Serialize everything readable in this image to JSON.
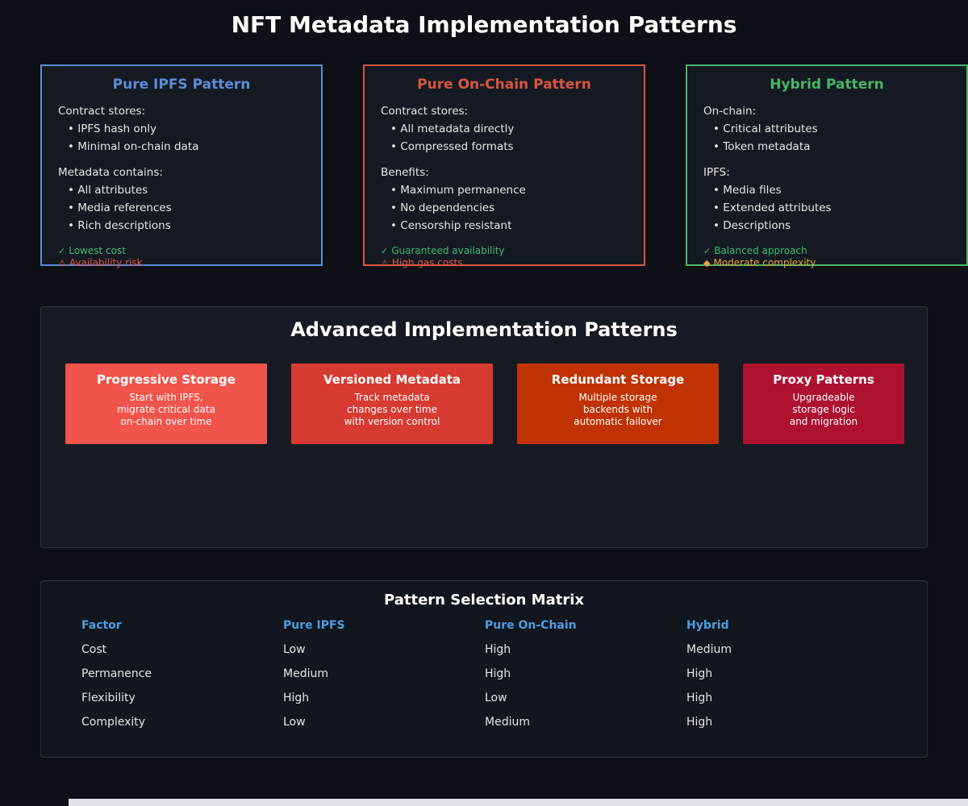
{
  "page": {
    "title": "NFT Metadata Implementation Patterns"
  },
  "colors": {
    "green": "#3dba6f",
    "red": "#e25549",
    "orange": "#e8a33c",
    "header_blue": "#4d9de0"
  },
  "cards": [
    {
      "title": "Pure IPFS Pattern",
      "accent": "#5b8dd9",
      "sections": [
        {
          "heading": "Contract stores:",
          "items": [
            "IPFS hash only",
            "Minimal on-chain data"
          ]
        },
        {
          "heading": "Metadata contains:",
          "items": [
            "All attributes",
            "Media references",
            "Rich descriptions"
          ]
        }
      ],
      "footer": [
        {
          "icon": "✓",
          "text": "Lowest cost",
          "color": "#3dba6f"
        },
        {
          "icon": "⚠",
          "text": "Availability risk",
          "color": "#e25549"
        }
      ]
    },
    {
      "title": "Pure On-Chain Pattern",
      "accent": "#d95540",
      "sections": [
        {
          "heading": "Contract stores:",
          "items": [
            "All metadata directly",
            "Compressed formats"
          ]
        },
        {
          "heading": "Benefits:",
          "items": [
            "Maximum permanence",
            "No dependencies",
            "Censorship resistant"
          ]
        }
      ],
      "footer": [
        {
          "icon": "✓",
          "text": "Guaranteed availability",
          "color": "#3dba6f"
        },
        {
          "icon": "⚠",
          "text": "High gas costs",
          "color": "#e25549"
        }
      ]
    },
    {
      "title": "Hybrid Pattern",
      "accent": "#46b768",
      "sections": [
        {
          "heading": "On-chain:",
          "items": [
            "Critical attributes",
            "Token metadata"
          ]
        },
        {
          "heading": "IPFS:",
          "items": [
            "Media files",
            "Extended attributes",
            "Descriptions"
          ]
        }
      ],
      "footer": [
        {
          "icon": "✓",
          "text": "Balanced approach",
          "color": "#3dba6f"
        },
        {
          "icon": "◆",
          "text": "Moderate complexity",
          "color": "#e8a33c"
        }
      ]
    }
  ],
  "advanced": {
    "title": "Advanced Implementation Patterns",
    "cards": [
      {
        "title": "Progressive Storage",
        "bg": "#f0544a",
        "lines": [
          "Start with IPFS,",
          "migrate critical data",
          "on-chain over time"
        ]
      },
      {
        "title": "Versioned Metadata",
        "bg": "#d63a31",
        "lines": [
          "Track metadata",
          "changes over time",
          "with version control"
        ]
      },
      {
        "title": "Redundant Storage",
        "bg": "#c03204",
        "lines": [
          "Multiple storage",
          "backends with",
          "automatic failover"
        ]
      },
      {
        "title": "Proxy Patterns",
        "bg": "#ae1130",
        "lines": [
          "Upgradeable",
          "storage logic",
          "and migration"
        ]
      }
    ]
  },
  "matrix": {
    "title": "Pattern Selection Matrix",
    "headers": [
      "Factor",
      "Pure IPFS",
      "Pure On-Chain",
      "Hybrid"
    ],
    "rows": [
      [
        "Cost",
        "Low",
        "High",
        "Medium"
      ],
      [
        "Permanence",
        "Medium",
        "High",
        "High"
      ],
      [
        "Flexibility",
        "High",
        "Low",
        "High"
      ],
      [
        "Complexity",
        "Low",
        "Medium",
        "High"
      ]
    ]
  }
}
